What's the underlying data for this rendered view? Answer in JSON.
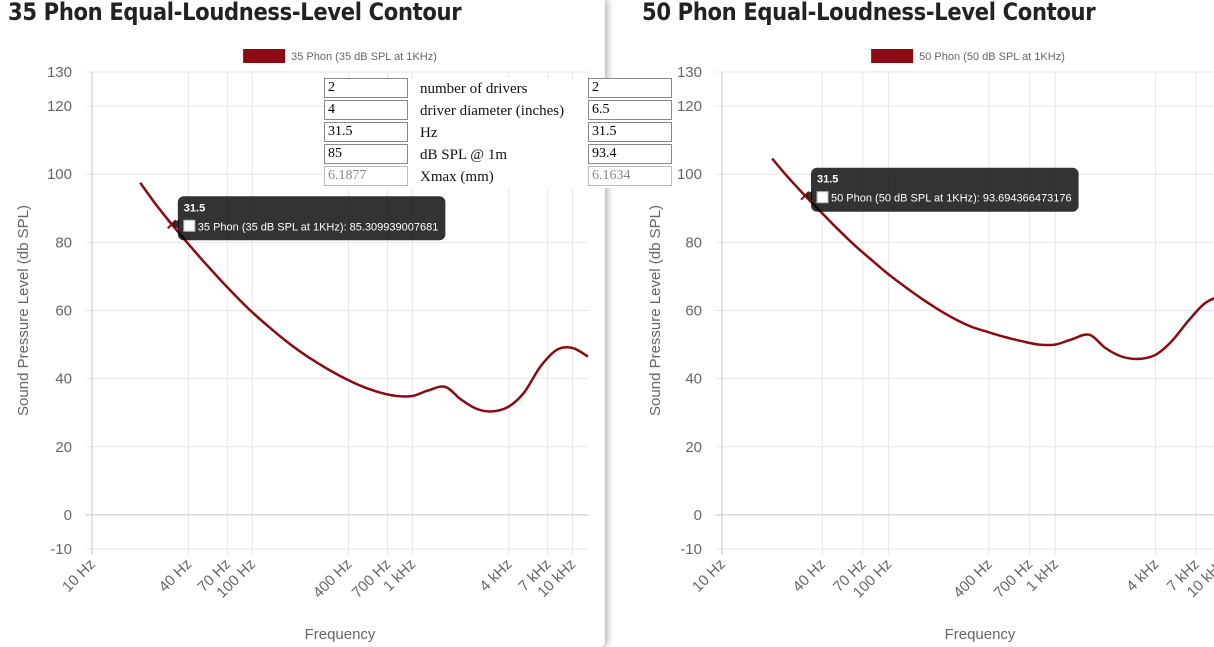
{
  "calculator": {
    "rows": [
      {
        "left": "2",
        "label": "number of drivers",
        "right": "2"
      },
      {
        "left": "4",
        "label": "driver diameter (inches)",
        "right": "6.5"
      },
      {
        "left": "31.5",
        "label": "Hz",
        "right": "31.5"
      },
      {
        "left": "85",
        "label": "dB SPL @ 1m",
        "right": "93.4"
      },
      {
        "left": "6.1877",
        "label": "Xmax (mm)",
        "right": "6.1634"
      }
    ]
  },
  "series_color": "#8b0a13",
  "chart_data": [
    {
      "type": "line",
      "title": "35 Phon Equal-Loudness-Level Contour",
      "xlabel": "Frequency",
      "ylabel": "Sound Pressure Level (db SPL)",
      "x_scale": "log",
      "xlim": [
        10,
        12500
      ],
      "ylim": [
        -10,
        130
      ],
      "y_ticks": [
        130,
        120,
        100,
        80,
        60,
        40,
        20,
        0,
        -10
      ],
      "x_ticks": [
        {
          "v": 10,
          "label": "10 Hz"
        },
        {
          "v": 40,
          "label": "40 Hz"
        },
        {
          "v": 70,
          "label": "70 Hz"
        },
        {
          "v": 100,
          "label": "100 Hz"
        },
        {
          "v": 400,
          "label": "400 Hz"
        },
        {
          "v": 700,
          "label": "700 Hz"
        },
        {
          "v": 1000,
          "label": "1 kHz"
        },
        {
          "v": 4000,
          "label": "4 kHz"
        },
        {
          "v": 7000,
          "label": "7 kHz"
        },
        {
          "v": 10000,
          "label": "10 kHz"
        }
      ],
      "grid": true,
      "legend_position": "top",
      "series": [
        {
          "name": "35 Phon (35 dB SPL at 1KHz)",
          "x": [
            20,
            25,
            31.5,
            40,
            50,
            63,
            80,
            100,
            125,
            160,
            200,
            250,
            315,
            400,
            500,
            630,
            800,
            1000,
            1250,
            1600,
            2000,
            2500,
            3150,
            4000,
            5000,
            6300,
            8000,
            10000,
            12500
          ],
          "y": [
            97.5,
            91.2,
            85.3,
            79.5,
            74.3,
            69.1,
            64.0,
            59.5,
            55.5,
            51.3,
            47.9,
            44.9,
            42.1,
            39.5,
            37.5,
            35.9,
            34.9,
            34.9,
            36.5,
            37.6,
            34.0,
            31.2,
            30.4,
            31.8,
            36.0,
            43.5,
            48.5,
            49.0,
            46.5
          ]
        }
      ],
      "tooltip": {
        "title": "31.5",
        "label": "35 Phon (35 dB SPL at 1KHz): 85.309939007681",
        "x": 31.5,
        "y": 85.31
      }
    },
    {
      "type": "line",
      "title": "50 Phon Equal-Loudness-Level Contour",
      "xlabel": "Frequency",
      "ylabel": "Sound Pressure Level (db SPL)",
      "x_scale": "log",
      "xlim": [
        10,
        12500
      ],
      "ylim": [
        -10,
        130
      ],
      "y_ticks": [
        130,
        120,
        100,
        80,
        60,
        40,
        20,
        0,
        -10
      ],
      "x_ticks": [
        {
          "v": 10,
          "label": "10 Hz"
        },
        {
          "v": 40,
          "label": "40 Hz"
        },
        {
          "v": 70,
          "label": "70 Hz"
        },
        {
          "v": 100,
          "label": "100 Hz"
        },
        {
          "v": 400,
          "label": "400 Hz"
        },
        {
          "v": 700,
          "label": "700 Hz"
        },
        {
          "v": 1000,
          "label": "1 kHz"
        },
        {
          "v": 4000,
          "label": "4 kHz"
        },
        {
          "v": 7000,
          "label": "7 kHz"
        },
        {
          "v": 10000,
          "label": "10 kHz"
        }
      ],
      "grid": true,
      "legend_position": "top",
      "series": [
        {
          "name": "50 Phon (50 dB SPL at 1KHz)",
          "x": [
            20,
            25,
            31.5,
            40,
            50,
            63,
            80,
            100,
            125,
            160,
            200,
            250,
            315,
            400,
            500,
            630,
            800,
            1000,
            1250,
            1600,
            2000,
            2500,
            3150,
            4000,
            5000,
            6300,
            8000,
            10000,
            12500
          ],
          "y": [
            104.6,
            99.0,
            93.7,
            88.5,
            83.7,
            79.0,
            74.6,
            70.6,
            67.0,
            63.3,
            60.2,
            57.5,
            55.2,
            53.6,
            52.2,
            51.0,
            50.0,
            50.0,
            51.5,
            52.9,
            49.0,
            46.5,
            45.8,
            47.0,
            51.0,
            57.0,
            62.3,
            63.8,
            61.0
          ]
        }
      ],
      "tooltip": {
        "title": "31.5",
        "label": "50 Phon (50 dB SPL at 1KHz): 93.694366473176",
        "x": 31.5,
        "y": 93.69
      }
    }
  ]
}
